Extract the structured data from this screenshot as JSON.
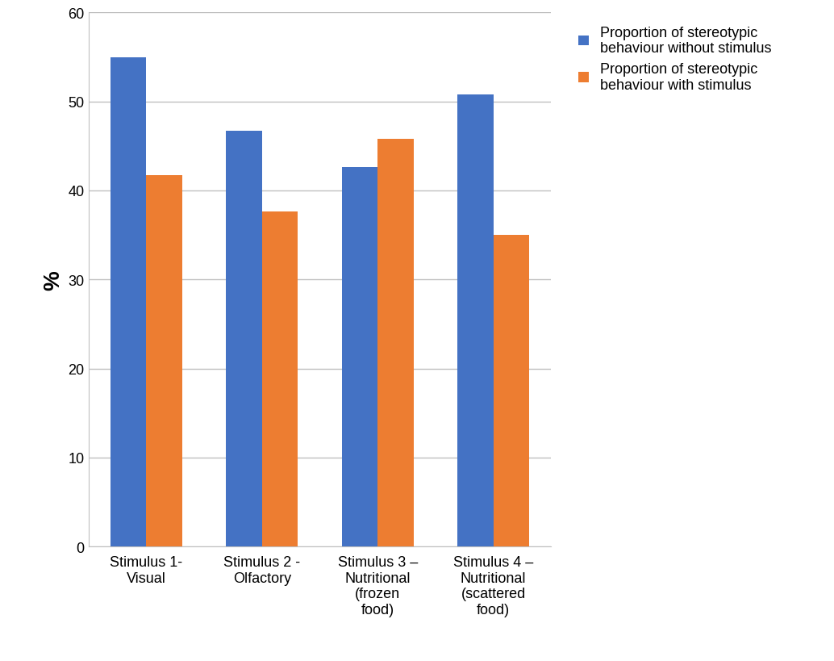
{
  "chart_data": {
    "type": "bar",
    "y_label": "%",
    "categories": [
      "Stimulus 1- Visual",
      "Stimulus 2 - Olfactory",
      "Stimulus 3 – Nutritional (frozen food)",
      "Stimulus 4 – Nutritional (scattered food)"
    ],
    "series": [
      {
        "name": "Proportion of stereotypic behaviour without stimulus",
        "color": "#4472c4",
        "values": [
          55.0,
          46.7,
          42.6,
          50.8
        ]
      },
      {
        "name": "Proportion of stereotypic behaviour with stimulus",
        "color": "#ed7d31",
        "values": [
          41.7,
          37.6,
          45.8,
          35.0
        ]
      }
    ],
    "ylim": [
      0,
      60
    ],
    "yticks": [
      0,
      10,
      20,
      30,
      40,
      50,
      60
    ],
    "grid": true,
    "legend": "upper left"
  }
}
